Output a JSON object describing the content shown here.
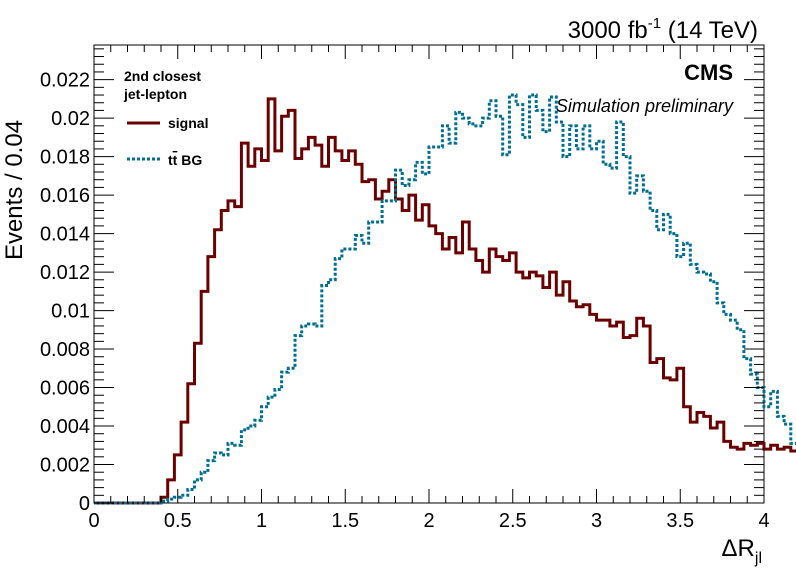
{
  "header": {
    "lumi_label": "3000 fb",
    "lumi_exp": "-1",
    "lumi_energy": " (14 TeV)",
    "cms_label": "CMS",
    "sim_label": "Simulation preliminary"
  },
  "legend": {
    "title_line1": "2nd closest",
    "title_line2": "jet-lepton",
    "signal_label": "signal",
    "bg_label_t": "t",
    "bg_label_tbar": "t",
    "bg_label_rest": " BG"
  },
  "axes": {
    "xlabel_main": "ΔR",
    "xlabel_sub": "jl",
    "ylabel": "Events / 0.04"
  },
  "colors": {
    "signal": "#6b0000",
    "background": "#006e91"
  },
  "chart_data": {
    "type": "line",
    "style": "histogram-step",
    "xlim": [
      0,
      4
    ],
    "ylim": [
      0,
      0.0238
    ],
    "bin_width": 0.04,
    "grid": false,
    "legend_position": "top-left",
    "x_ticks": [
      0,
      0.5,
      1,
      1.5,
      2,
      2.5,
      3,
      3.5,
      4
    ],
    "x_tick_labels": [
      "0",
      "0.5",
      "1",
      "1.5",
      "2",
      "2.5",
      "3",
      "3.5",
      "4"
    ],
    "y_ticks": [
      0,
      0.002,
      0.004,
      0.006,
      0.008,
      0.01,
      0.012,
      0.014,
      0.016,
      0.018,
      0.02,
      0.022
    ],
    "y_tick_labels": [
      "0",
      "0.002",
      "0.004",
      "0.006",
      "0.008",
      "0.01",
      "0.012",
      "0.014",
      "0.016",
      "0.018",
      "0.02",
      "0.022"
    ],
    "series": [
      {
        "name": "signal",
        "color": "#6b0000",
        "dash": "solid",
        "values": [
          0,
          0,
          0,
          0,
          0,
          0,
          0,
          0,
          0,
          0,
          0.0003,
          0.0012,
          0.0025,
          0.0042,
          0.0062,
          0.0083,
          0.011,
          0.0128,
          0.0142,
          0.0152,
          0.0157,
          0.0154,
          0.0187,
          0.0175,
          0.0184,
          0.0178,
          0.021,
          0.0183,
          0.0201,
          0.0204,
          0.0179,
          0.0184,
          0.019,
          0.0186,
          0.0175,
          0.019,
          0.0183,
          0.0178,
          0.0183,
          0.0176,
          0.0167,
          0.0168,
          0.0158,
          0.0162,
          0.0168,
          0.0158,
          0.0152,
          0.016,
          0.0147,
          0.0155,
          0.0144,
          0.014,
          0.0132,
          0.0138,
          0.013,
          0.0146,
          0.0132,
          0.0126,
          0.012,
          0.0132,
          0.0128,
          0.0126,
          0.013,
          0.012,
          0.0117,
          0.012,
          0.0118,
          0.0112,
          0.012,
          0.0108,
          0.0115,
          0.0105,
          0.0102,
          0.0103,
          0.0098,
          0.0095,
          0.0095,
          0.0092,
          0.0094,
          0.0086,
          0.0087,
          0.0096,
          0.0092,
          0.0073,
          0.0075,
          0.0065,
          0.0064,
          0.007,
          0.005,
          0.0042,
          0.0047,
          0.0045,
          0.0039,
          0.0042,
          0.0032,
          0.0029,
          0.0028,
          0.0031,
          0.003,
          0.0031,
          0.0028,
          0.003,
          0.0028,
          0.0029,
          0.0027,
          0.0025,
          0.0024,
          0.0021,
          0.0018,
          0.002,
          0.0016,
          0.0017,
          0.0014,
          0.0017,
          0.0015,
          0.0013,
          0.0013,
          0.0016,
          0.0013,
          0.0013
        ]
      },
      {
        "name": "tt̄ BG",
        "color": "#006e91",
        "dash": "dotted",
        "values": [
          0,
          0,
          0,
          0,
          0,
          0,
          0,
          0,
          0,
          0,
          0.0001,
          0.0002,
          0.0003,
          0.0004,
          0.0007,
          0.0012,
          0.0016,
          0.0022,
          0.0026,
          0.0025,
          0.0031,
          0.003,
          0.0038,
          0.004,
          0.0043,
          0.005,
          0.0055,
          0.0059,
          0.0068,
          0.007,
          0.0087,
          0.0092,
          0.0093,
          0.0092,
          0.0113,
          0.0116,
          0.0127,
          0.0132,
          0.0132,
          0.0139,
          0.0135,
          0.0146,
          0.0146,
          0.0157,
          0.0157,
          0.0173,
          0.0165,
          0.0168,
          0.0177,
          0.0171,
          0.0185,
          0.0185,
          0.0196,
          0.0187,
          0.0203,
          0.02,
          0.0197,
          0.0196,
          0.02,
          0.0209,
          0.0201,
          0.0181,
          0.0212,
          0.0207,
          0.019,
          0.0212,
          0.0204,
          0.0193,
          0.0211,
          0.0198,
          0.018,
          0.0196,
          0.0184,
          0.0196,
          0.0184,
          0.0188,
          0.0176,
          0.0174,
          0.0198,
          0.018,
          0.0161,
          0.017,
          0.0162,
          0.0152,
          0.0142,
          0.015,
          0.014,
          0.0128,
          0.0135,
          0.0124,
          0.012,
          0.0119,
          0.0115,
          0.0104,
          0.0098,
          0.0095,
          0.009,
          0.0075,
          0.0067,
          0.006,
          0.005,
          0.0058,
          0.0045,
          0.0041,
          0.0031,
          0.0037,
          0.003,
          0.003,
          0.0027,
          0.0031,
          0.0027,
          0.0027,
          0.0023,
          0.0024,
          0.0021,
          0.0019,
          0.0018,
          0.0017,
          0.0016,
          0.0017
        ]
      }
    ]
  }
}
